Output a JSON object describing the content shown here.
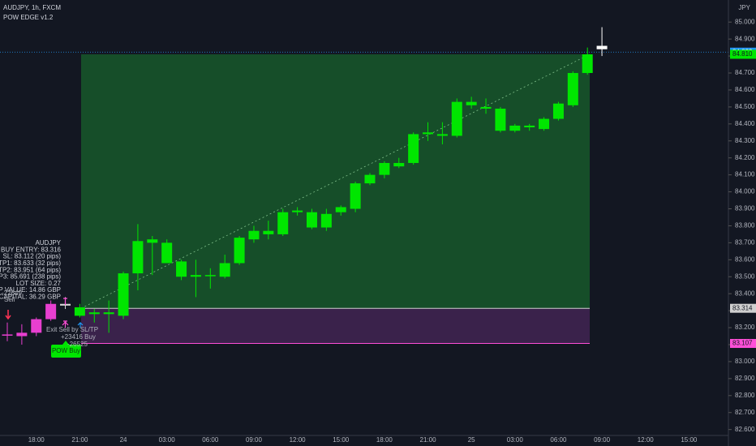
{
  "chart_data": {
    "type": "candlestick",
    "title": "AUDJPY, 1h, FXCM",
    "subtitle": "POW EDGE v1.2",
    "currency": "JPY",
    "categories": [
      null,
      null,
      "18:00",
      null,
      null,
      "21:00",
      null,
      null,
      "24",
      null,
      null,
      "03:00",
      null,
      null,
      "06:00",
      null,
      null,
      "09:00",
      null,
      null,
      "12:00",
      null,
      null,
      "15:00",
      null,
      null,
      "18:00",
      null,
      null,
      "21:00",
      null,
      null,
      "25",
      null,
      null,
      "03:00",
      null,
      null,
      "06:00",
      null,
      null,
      "09:00",
      null,
      null,
      "12:00",
      null,
      null,
      "15:00"
    ],
    "open": [
      83.16,
      83.15,
      83.17,
      83.25,
      83.34,
      83.27,
      83.28,
      83.28,
      83.27,
      83.52,
      83.7,
      83.7,
      83.59,
      83.5,
      83.51,
      83.5,
      83.58,
      83.72,
      83.75,
      83.75,
      83.88,
      83.88,
      83.79,
      83.88,
      83.9,
      84.05,
      84.1,
      84.15,
      84.17,
      84.34,
      84.34,
      84.33,
      84.53,
      84.5,
      84.49,
      84.39,
      84.38,
      84.37,
      84.43,
      84.51,
      84.7,
      84.86,
      null,
      null,
      null,
      null,
      null,
      null
    ],
    "high": [
      83.23,
      83.22,
      83.26,
      83.36,
      83.38,
      83.34,
      83.31,
      83.36,
      83.53,
      83.81,
      83.74,
      83.72,
      83.6,
      83.6,
      83.55,
      83.63,
      83.74,
      83.8,
      83.83,
      83.9,
      83.91,
      83.9,
      83.9,
      83.92,
      84.06,
      84.11,
      84.18,
      84.2,
      84.35,
      84.41,
      84.41,
      84.55,
      84.56,
      84.55,
      84.5,
      84.4,
      84.4,
      84.44,
      84.53,
      84.71,
      84.85,
      84.97,
      null,
      null,
      null,
      null,
      null,
      null
    ],
    "low": [
      83.12,
      83.1,
      83.15,
      83.24,
      83.31,
      83.26,
      83.23,
      83.17,
      83.25,
      83.42,
      83.51,
      83.58,
      83.48,
      83.38,
      83.43,
      83.49,
      83.57,
      83.7,
      83.72,
      83.74,
      83.86,
      83.78,
      83.77,
      83.86,
      83.88,
      84.04,
      84.08,
      84.14,
      84.16,
      84.3,
      84.28,
      84.32,
      84.49,
      84.46,
      84.35,
      84.35,
      84.36,
      84.36,
      84.42,
      84.5,
      84.69,
      84.8,
      null,
      null,
      null,
      null,
      null,
      null
    ],
    "close": [
      83.16,
      83.17,
      83.25,
      83.34,
      83.33,
      83.32,
      83.29,
      83.29,
      83.52,
      83.71,
      83.72,
      83.58,
      83.5,
      83.51,
      83.51,
      83.58,
      83.73,
      83.77,
      83.77,
      83.88,
      83.89,
      83.79,
      83.87,
      83.91,
      84.05,
      84.1,
      84.17,
      84.17,
      84.34,
      84.35,
      84.33,
      84.53,
      84.51,
      84.49,
      84.36,
      84.36,
      84.39,
      84.43,
      84.52,
      84.7,
      84.81,
      84.84,
      null,
      null,
      null,
      null,
      null,
      null
    ],
    "colors": [
      "#e83fd0",
      "#e83fd0",
      "#e83fd0",
      "#e83fd0",
      "#d8d8d8",
      "#00e600",
      "#00e600",
      "#00e600",
      "#00e600",
      "#00e600",
      "#00e600",
      "#00e600",
      "#00e600",
      "#00e600",
      "#00e600",
      "#00e600",
      "#00e600",
      "#00e600",
      "#00e600",
      "#00e600",
      "#00e600",
      "#00e600",
      "#00e600",
      "#00e600",
      "#00e600",
      "#00e600",
      "#00e600",
      "#00e600",
      "#00e600",
      "#00e600",
      "#00e600",
      "#00e600",
      "#00e600",
      "#00e600",
      "#00e600",
      "#00e600",
      "#00e600",
      "#00e600",
      "#00e600",
      "#00e600",
      "#00e600",
      "#ffffff",
      null,
      null,
      null,
      null,
      null,
      null
    ],
    "ylim": [
      82.565,
      85.13
    ],
    "yticks": [
      {
        "value": 85,
        "label": "85.000"
      },
      {
        "value": 84.9,
        "label": "84.900"
      },
      {
        "value": 84.8,
        "label": "84.800"
      },
      {
        "value": 84.7,
        "label": "84.700"
      },
      {
        "value": 84.6,
        "label": "84.600"
      },
      {
        "value": 84.5,
        "label": "84.500"
      },
      {
        "value": 84.4,
        "label": "84.400"
      },
      {
        "value": 84.3,
        "label": "84.300"
      },
      {
        "value": 84.2,
        "label": "84.200"
      },
      {
        "value": 84.1,
        "label": "84.100"
      },
      {
        "value": 84,
        "label": "84.000"
      },
      {
        "value": 83.9,
        "label": "83.900"
      },
      {
        "value": 83.8,
        "label": "83.800"
      },
      {
        "value": 83.7,
        "label": "83.700"
      },
      {
        "value": 83.6,
        "label": "83.600"
      },
      {
        "value": 83.5,
        "label": "83.500"
      },
      {
        "value": 83.4,
        "label": "83.400"
      },
      {
        "value": 83.3,
        "label": "83.300"
      },
      {
        "value": 83.2,
        "label": "83.200"
      },
      {
        "value": 83.1,
        "label": "83.100"
      },
      {
        "value": 83,
        "label": "83.000"
      },
      {
        "value": 82.9,
        "label": "82.900"
      },
      {
        "value": 82.8,
        "label": "82.800"
      },
      {
        "value": 82.7,
        "label": "82.700"
      },
      {
        "value": 82.6,
        "label": "82.600"
      }
    ],
    "grid": false,
    "zones": [
      {
        "top": 84.81,
        "bottom": 83.314,
        "color": "#17542a"
      },
      {
        "top": 83.314,
        "bottom": 83.107,
        "color": "#3f2450"
      }
    ],
    "price_labels": [
      {
        "value": 84.823,
        "label": "84.823",
        "color": "#2196f3"
      },
      {
        "value": 84.81,
        "label": "84.810",
        "color": "#00e600"
      },
      {
        "value": 83.314,
        "label": "83.314",
        "color": "#d0d0d0"
      },
      {
        "value": 83.107,
        "label": "83.107",
        "color": "#ff4fd8"
      }
    ],
    "info_lines": [
      "AUDJPY",
      "BUY ENTRY: 83.316",
      "SL: 83.112 (20 pips)",
      "TP1: 83.633 (32 pips)",
      "TP2: 83.951 (64 pips)",
      "TP3: 85.691 (238 pips)",
      "LOT SIZE: 0.27",
      "PIP VALUE: 14.86 GBP",
      "RISK CAPITAL: 36.29 GBP"
    ],
    "annotations": [
      "-22649",
      "Sell",
      "Exit Sell by SL/TP",
      "+23416  Buy",
      "-26525",
      "POW Buy"
    ]
  }
}
